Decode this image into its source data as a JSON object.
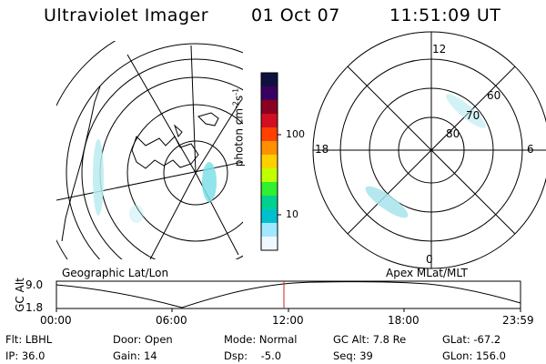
{
  "header": {
    "title": "Ultraviolet Imager",
    "date": "01 Oct 07",
    "time": "11:51:09 UT"
  },
  "colorbar": {
    "unit_text": "photon cm",
    "unit_exp1": "-2",
    "unit_s": "s",
    "unit_exp2": "-1",
    "tick_labels": [
      "100",
      "10"
    ],
    "colors": [
      "#101040",
      "#3a0060",
      "#8a0020",
      "#d01020",
      "#ff4000",
      "#ff9000",
      "#ffd000",
      "#c0ff00",
      "#30f030",
      "#00d090",
      "#00c0d0",
      "#a0e8ff",
      "#f0f8ff"
    ]
  },
  "right_map": {
    "mlt_labels": {
      "top": "12",
      "left": "18",
      "right": "6",
      "bottom": "0"
    },
    "lat_labels": [
      "60",
      "70",
      "80"
    ]
  },
  "map_labels": {
    "left": "Geographic Lat/Lon",
    "right": "Apex MLat/MLT"
  },
  "altitude_plot": {
    "axis_label": "GC Alt",
    "y_ticks": [
      "9.0",
      "1.8"
    ],
    "x_ticks": [
      "00:00",
      "06:00",
      "12:00",
      "18:00",
      "23:59"
    ],
    "marker_color": "#d02020"
  },
  "info": {
    "flt": "Flt: LBHL",
    "ip": "IP: 36.0",
    "door": "Door: Open",
    "gain": "Gain: 14",
    "mode": "Mode: Normal",
    "dsp": "Dsp:    -5.0",
    "gc_alt": "GC Alt: 7.8 Re",
    "seq": "Seq: 39",
    "glat": "GLat: -67.2",
    "glon": "GLon: 156.0"
  }
}
